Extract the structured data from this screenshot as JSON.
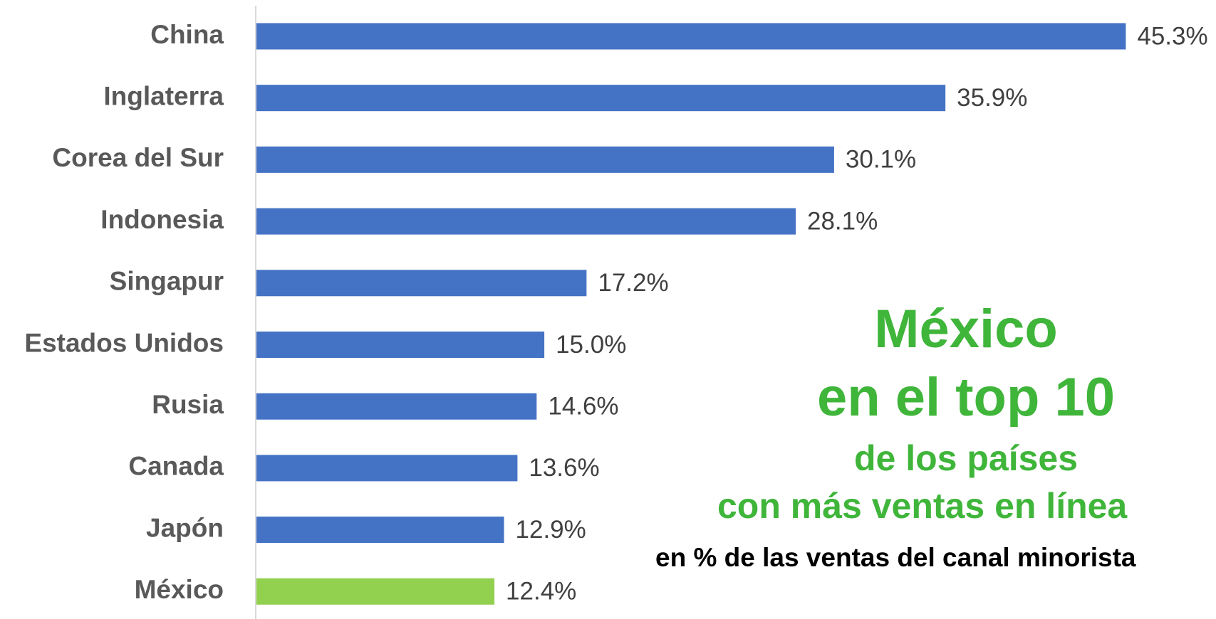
{
  "chart_data": {
    "type": "bar",
    "orientation": "horizontal",
    "categories": [
      "China",
      "Inglaterra",
      "Corea del Sur",
      "Indonesia",
      "Singapur",
      "Estados Unidos",
      "Rusia",
      "Canada",
      "Japón",
      "México"
    ],
    "values": [
      45.3,
      35.9,
      30.1,
      28.1,
      17.2,
      15.0,
      14.6,
      13.6,
      12.9,
      12.4
    ],
    "value_labels": [
      "45.3%",
      "35.9%",
      "30.1%",
      "28.1%",
      "17.2%",
      "15.0%",
      "14.6%",
      "13.6%",
      "12.9%",
      "12.4%"
    ],
    "colors": [
      "#4472c4",
      "#4472c4",
      "#4472c4",
      "#4472c4",
      "#4472c4",
      "#4472c4",
      "#4472c4",
      "#4472c4",
      "#4472c4",
      "#92d050"
    ],
    "xlim": [
      0,
      50
    ],
    "annotations": [
      "México",
      "en el top 10",
      "de los países",
      "con más ventas en línea",
      "en % de las ventas del canal minorista"
    ]
  }
}
